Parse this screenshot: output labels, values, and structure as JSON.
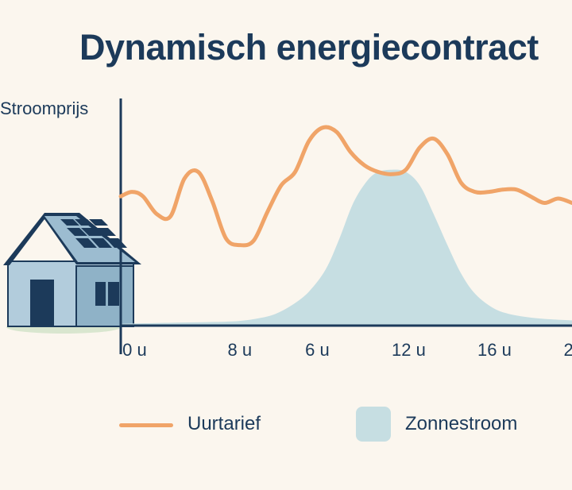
{
  "title": "Dynamisch energiecontract",
  "y_axis_label": "Stroomprijs",
  "legend": {
    "price_label": "Uurtarief",
    "solar_label": "Zonnestroom"
  },
  "colors": {
    "background": "#fbf6ee",
    "text": "#1c3a5a",
    "price_line": "#f0a468",
    "solar_area": "#c6dee2",
    "axis": "#1c3a5a"
  },
  "icons": [
    "house-with-solar-panels-icon"
  ],
  "chart_data": {
    "type": "line",
    "title": "Dynamisch energiecontract",
    "xlabel": "",
    "ylabel": "Stroomprijs",
    "x_tick_labels": [
      "0 u",
      "8 u",
      "6 u",
      "12 u",
      "16 u",
      "2"
    ],
    "x_tick_positions": [
      0.5,
      4.3,
      7.1,
      10.4,
      13.5,
      16.0
    ],
    "xlim": [
      0,
      16.3
    ],
    "ylim": [
      0,
      10
    ],
    "grid": false,
    "legend_position": "bottom",
    "series": [
      {
        "name": "Uurtarief",
        "kind": "line",
        "x": [
          0,
          0.4,
          0.8,
          1.3,
          1.8,
          2.3,
          2.8,
          3.3,
          3.8,
          4.3,
          4.8,
          5.3,
          5.8,
          6.3,
          6.8,
          7.3,
          7.8,
          8.3,
          8.8,
          9.3,
          9.8,
          10.3,
          10.8,
          11.3,
          11.8,
          12.3,
          12.8,
          13.3,
          13.8,
          14.3,
          14.8,
          15.3,
          15.8,
          16.3
        ],
        "values": [
          5.8,
          6.0,
          5.8,
          5.0,
          4.9,
          6.6,
          6.9,
          5.6,
          3.9,
          3.6,
          3.8,
          5.1,
          6.3,
          6.9,
          8.3,
          8.9,
          8.7,
          7.8,
          7.2,
          6.9,
          6.8,
          7.0,
          8.0,
          8.4,
          7.7,
          6.4,
          6.0,
          6.0,
          6.1,
          6.1,
          5.8,
          5.5,
          5.7,
          5.5
        ]
      },
      {
        "name": "Zonnestroom",
        "kind": "area",
        "x": [
          0,
          2.0,
          4.0,
          5.0,
          5.6,
          6.2,
          6.8,
          7.4,
          7.9,
          8.4,
          8.9,
          9.3,
          9.8,
          10.3,
          10.8,
          11.3,
          11.8,
          12.3,
          12.8,
          13.4,
          14.0,
          15.0,
          16.3
        ],
        "values": [
          0.05,
          0.1,
          0.15,
          0.3,
          0.5,
          0.9,
          1.5,
          2.5,
          3.9,
          5.5,
          6.5,
          6.9,
          7.0,
          6.9,
          6.3,
          5.0,
          3.6,
          2.3,
          1.4,
          0.8,
          0.5,
          0.3,
          0.2
        ]
      }
    ]
  }
}
